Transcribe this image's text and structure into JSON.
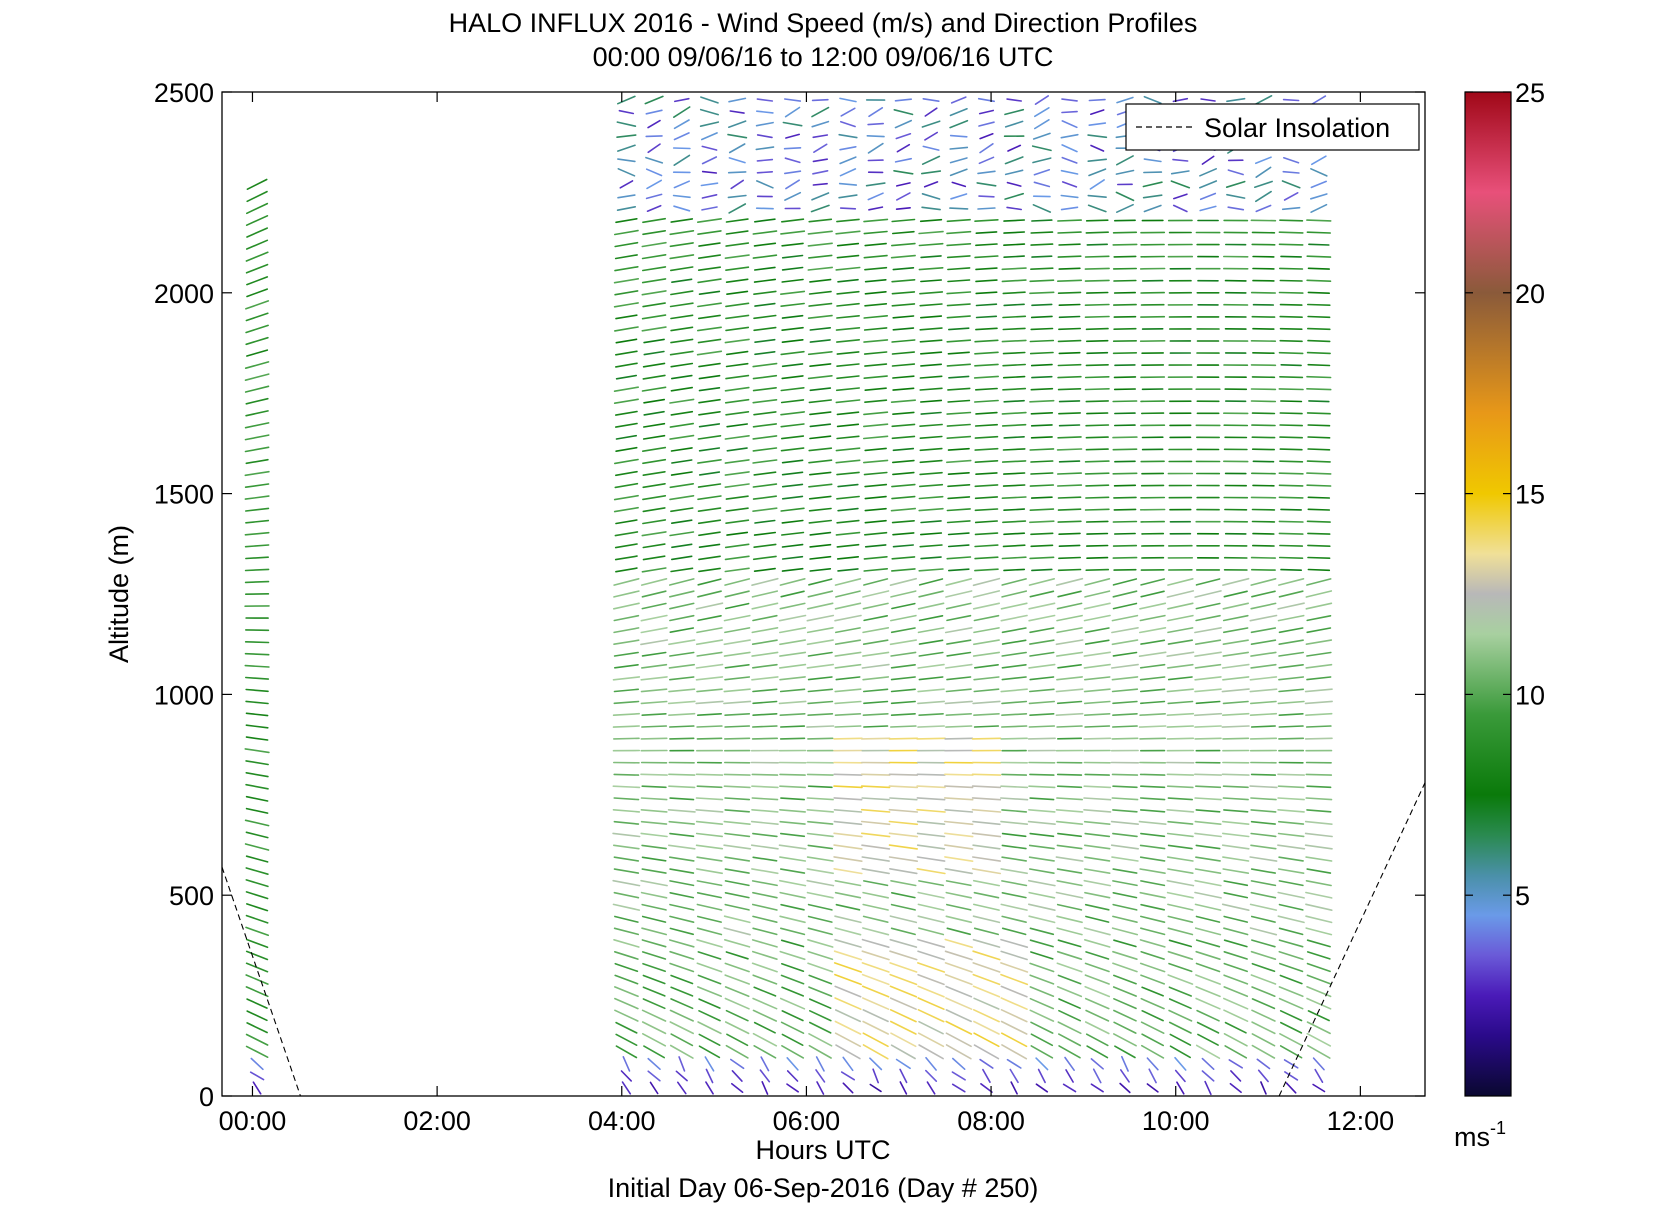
{
  "chart_data": {
    "type": "quiver",
    "title": "HALO INFLUX 2016 - Wind Speed (m/s) and Direction Profiles",
    "subtitle": "00:00 09/06/16 to 12:00 09/06/16  UTC",
    "xlabel": "Hours UTC",
    "footer": "Initial Day 06-Sep-2016 (Day # 250)",
    "ylabel": "Altitude (m)",
    "xlim": [
      -0.33,
      12.7
    ],
    "ylim": [
      0,
      2500
    ],
    "x_ticks": [
      0,
      2,
      4,
      6,
      8,
      10,
      12
    ],
    "x_tick_labels": [
      "00:00",
      "02:00",
      "04:00",
      "06:00",
      "08:00",
      "10:00",
      "12:00"
    ],
    "y_ticks": [
      0,
      500,
      1000,
      1500,
      2000,
      2500
    ],
    "y_tick_labels": [
      "0",
      "500",
      "1000",
      "1500",
      "2000",
      "2500"
    ],
    "legend": {
      "position": "top-right",
      "entries": [
        {
          "label": "Solar Insolation",
          "style": "dashed",
          "color": "#000000"
        }
      ]
    },
    "colorbar": {
      "range": [
        0,
        25
      ],
      "ticks": [
        5,
        10,
        15,
        20,
        25
      ],
      "tick_labels": [
        "5",
        "10",
        "15",
        "20",
        "25"
      ],
      "unit_base": "ms",
      "unit_exp": "-1",
      "stops": [
        {
          "v": 0,
          "c": "#0a0830"
        },
        {
          "v": 1.5,
          "c": "#2a0a8a"
        },
        {
          "v": 2.5,
          "c": "#4a1ab8"
        },
        {
          "v": 3.5,
          "c": "#6a5ad8"
        },
        {
          "v": 4.5,
          "c": "#6a9ae8"
        },
        {
          "v": 5.5,
          "c": "#4a90a8"
        },
        {
          "v": 6.5,
          "c": "#2a8a50"
        },
        {
          "v": 7.5,
          "c": "#0a7a0a"
        },
        {
          "v": 9.5,
          "c": "#3a9a3a"
        },
        {
          "v": 11.5,
          "c": "#a8d0a0"
        },
        {
          "v": 12.5,
          "c": "#b8b8b8"
        },
        {
          "v": 13.5,
          "c": "#f0e098"
        },
        {
          "v": 15,
          "c": "#f0c800"
        },
        {
          "v": 17,
          "c": "#e89818"
        },
        {
          "v": 20,
          "c": "#8a5a3a"
        },
        {
          "v": 22.5,
          "c": "#e8507a"
        },
        {
          "v": 25,
          "c": "#a00818"
        }
      ]
    },
    "solar_insolation": [
      {
        "x": [
          -0.33,
          0.52
        ],
        "y": [
          570,
          0
        ]
      },
      {
        "x": [
          11.12,
          12.7
        ],
        "y": [
          0,
          780
        ]
      }
    ],
    "profiles": {
      "times": [
        0.05,
        4.05,
        4.35,
        4.65,
        4.95,
        5.25,
        5.55,
        5.85,
        6.15,
        6.45,
        6.75,
        7.05,
        7.35,
        7.65,
        7.95,
        8.25,
        8.55,
        8.85,
        9.15,
        9.45,
        9.75,
        10.05,
        10.35,
        10.65,
        10.95,
        11.25,
        11.55
      ],
      "altitude_step_m": 30,
      "altitude_max_m": 2500,
      "first_profile_top_m": 2280
    }
  }
}
